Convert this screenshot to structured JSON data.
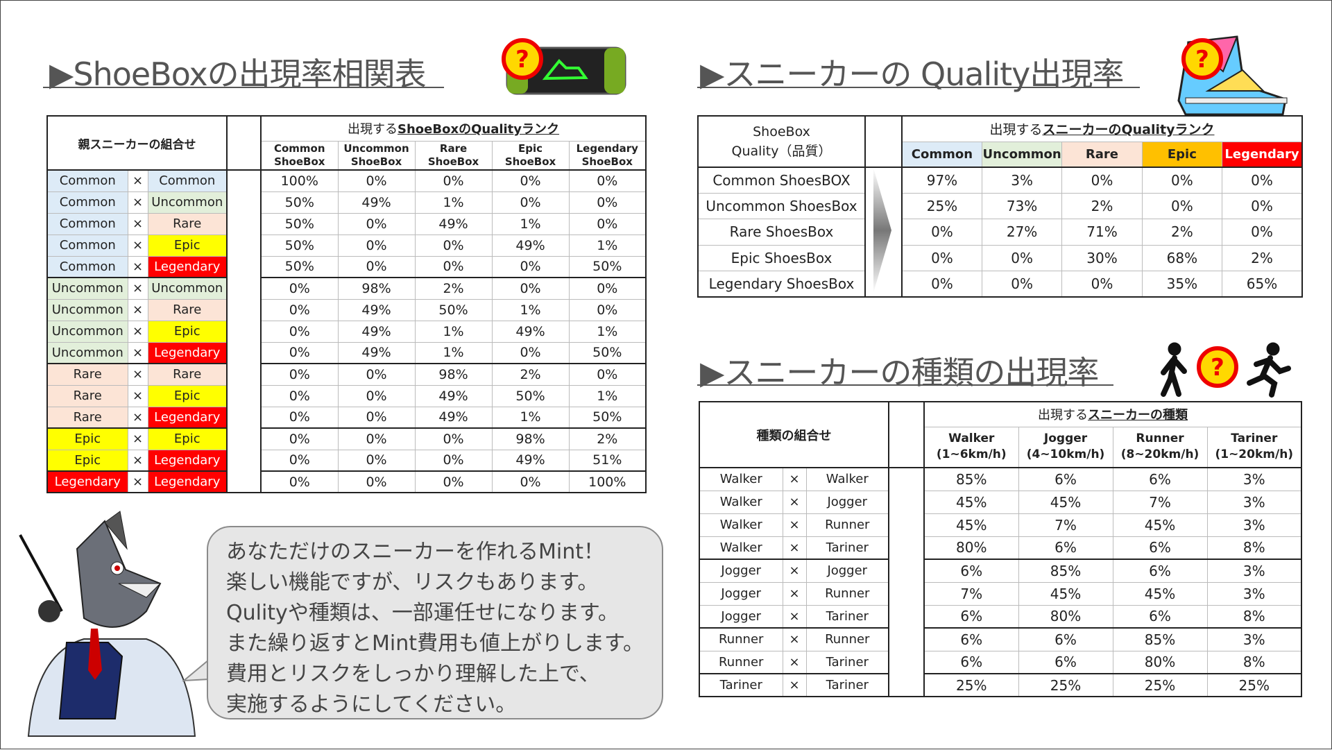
{
  "icon_mark": "?",
  "rank_colors": {
    "Common": "#ddebf7",
    "Uncommon": "#e2efda",
    "Rare": "#fce4d6",
    "Epic": "#ffff00",
    "Legendary": "#ff0000"
  },
  "quality_header_colors": {
    "Common": "#ddebf7",
    "Uncommon": "#e2efda",
    "Rare": "#fce4d6",
    "Epic": "#ffc000",
    "Legendary": "#ff0000"
  },
  "shoebox": {
    "title": "▶ShoeBoxの出現率相関表",
    "parent_header": "親スニーカーの組合せ",
    "result_prefix": "出現する",
    "result_emph": "ShoeBoxのQualityランク",
    "cross": "×",
    "columns": [
      [
        "Common",
        "ShoeBox"
      ],
      [
        "Uncommon",
        "ShoeBox"
      ],
      [
        "Rare",
        "ShoeBox"
      ],
      [
        "Epic",
        "ShoeBox"
      ],
      [
        "Legendary",
        "ShoeBox"
      ]
    ],
    "rows": [
      {
        "a": "Common",
        "b": "Common",
        "values": [
          "100%",
          "0%",
          "0%",
          "0%",
          "0%"
        ]
      },
      {
        "a": "Common",
        "b": "Uncommon",
        "values": [
          "50%",
          "49%",
          "1%",
          "0%",
          "0%"
        ]
      },
      {
        "a": "Common",
        "b": "Rare",
        "values": [
          "50%",
          "0%",
          "49%",
          "1%",
          "0%"
        ]
      },
      {
        "a": "Common",
        "b": "Epic",
        "values": [
          "50%",
          "0%",
          "0%",
          "49%",
          "1%"
        ]
      },
      {
        "a": "Common",
        "b": "Legendary",
        "values": [
          "50%",
          "0%",
          "0%",
          "0%",
          "50%"
        ]
      },
      {
        "a": "Uncommon",
        "b": "Uncommon",
        "values": [
          "0%",
          "98%",
          "2%",
          "0%",
          "0%"
        ]
      },
      {
        "a": "Uncommon",
        "b": "Rare",
        "values": [
          "0%",
          "49%",
          "50%",
          "1%",
          "0%"
        ]
      },
      {
        "a": "Uncommon",
        "b": "Epic",
        "values": [
          "0%",
          "49%",
          "1%",
          "49%",
          "1%"
        ]
      },
      {
        "a": "Uncommon",
        "b": "Legendary",
        "values": [
          "0%",
          "49%",
          "1%",
          "0%",
          "50%"
        ]
      },
      {
        "a": "Rare",
        "b": "Rare",
        "values": [
          "0%",
          "0%",
          "98%",
          "2%",
          "0%"
        ]
      },
      {
        "a": "Rare",
        "b": "Epic",
        "values": [
          "0%",
          "0%",
          "49%",
          "50%",
          "1%"
        ]
      },
      {
        "a": "Rare",
        "b": "Legendary",
        "values": [
          "0%",
          "0%",
          "49%",
          "1%",
          "50%"
        ]
      },
      {
        "a": "Epic",
        "b": "Epic",
        "values": [
          "0%",
          "0%",
          "0%",
          "98%",
          "2%"
        ]
      },
      {
        "a": "Epic",
        "b": "Legendary",
        "values": [
          "0%",
          "0%",
          "0%",
          "49%",
          "51%"
        ]
      },
      {
        "a": "Legendary",
        "b": "Legendary",
        "values": [
          "0%",
          "0%",
          "0%",
          "0%",
          "100%"
        ]
      }
    ]
  },
  "quality": {
    "title": "▶スニーカーの Quality出現率",
    "label_header": [
      "ShoeBox",
      "Quality（品質）"
    ],
    "result_prefix": "出現する",
    "result_emph": "スニーカーのQualityランク",
    "columns": [
      "Common",
      "Uncommon",
      "Rare",
      "Epic",
      "Legendary"
    ],
    "rows": [
      {
        "label": "Common ShoesBOX",
        "values": [
          "97%",
          "3%",
          "0%",
          "0%",
          "0%"
        ]
      },
      {
        "label": "Uncommon ShoesBox",
        "values": [
          "25%",
          "73%",
          "2%",
          "0%",
          "0%"
        ]
      },
      {
        "label": "Rare ShoesBox",
        "values": [
          "0%",
          "27%",
          "71%",
          "2%",
          "0%"
        ]
      },
      {
        "label": "Epic ShoesBox",
        "values": [
          "0%",
          "0%",
          "30%",
          "68%",
          "2%"
        ]
      },
      {
        "label": "Legendary ShoesBox",
        "values": [
          "0%",
          "0%",
          "0%",
          "35%",
          "65%"
        ]
      }
    ]
  },
  "types": {
    "title": "▶スニーカーの種類の出現率",
    "parent_header": "種類の組合せ",
    "result_prefix": "出現する",
    "result_emph": "スニーカーの種類",
    "cross": "×",
    "columns": [
      [
        "Walker",
        "(1~6km/h)"
      ],
      [
        "Jogger",
        "(4~10km/h)"
      ],
      [
        "Runner",
        "(8~20km/h)"
      ],
      [
        "Tariner",
        "(1~20km/h)"
      ]
    ],
    "rows": [
      {
        "a": "Walker",
        "b": "Walker",
        "values": [
          "85%",
          "6%",
          "6%",
          "3%"
        ]
      },
      {
        "a": "Walker",
        "b": "Jogger",
        "values": [
          "45%",
          "45%",
          "7%",
          "3%"
        ]
      },
      {
        "a": "Walker",
        "b": "Runner",
        "values": [
          "45%",
          "7%",
          "45%",
          "3%"
        ]
      },
      {
        "a": "Walker",
        "b": "Tariner",
        "values": [
          "80%",
          "6%",
          "6%",
          "8%"
        ]
      },
      {
        "a": "Jogger",
        "b": "Jogger",
        "values": [
          "6%",
          "85%",
          "6%",
          "3%"
        ]
      },
      {
        "a": "Jogger",
        "b": "Runner",
        "values": [
          "7%",
          "45%",
          "45%",
          "3%"
        ]
      },
      {
        "a": "Jogger",
        "b": "Tariner",
        "values": [
          "6%",
          "80%",
          "6%",
          "8%"
        ]
      },
      {
        "a": "Runner",
        "b": "Runner",
        "values": [
          "6%",
          "6%",
          "85%",
          "3%"
        ]
      },
      {
        "a": "Runner",
        "b": "Tariner",
        "values": [
          "6%",
          "6%",
          "80%",
          "8%"
        ]
      },
      {
        "a": "Tariner",
        "b": "Tariner",
        "values": [
          "25%",
          "25%",
          "25%",
          "25%"
        ]
      }
    ]
  },
  "bubble": {
    "lines": [
      "あなただけのスニーカーを作れるMint！",
      "楽しい機能ですが、リスクもあります。",
      "Qulityや種類は、一部運任せになります。",
      "また繰り返すとMint費用も値上がりします。",
      "費用とリスクをしっかり理解した上で、",
      "実施するようにしてください。"
    ]
  }
}
